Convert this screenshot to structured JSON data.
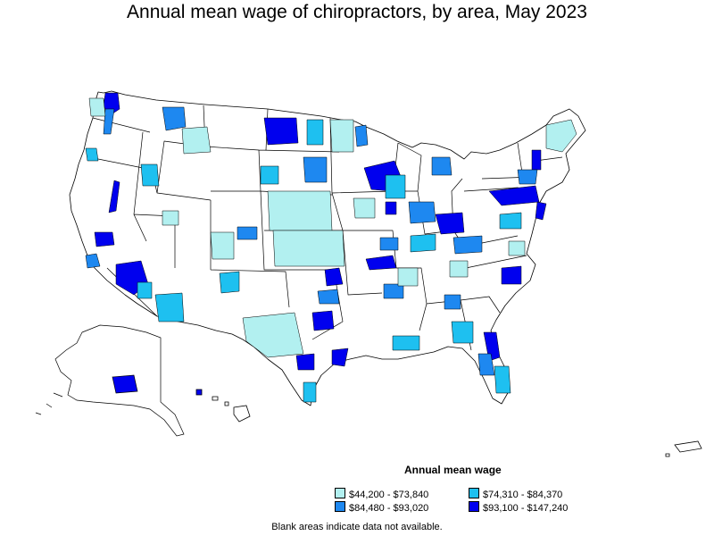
{
  "title": "Annual mean wage of chiropractors, by area, May 2023",
  "legend": {
    "title": "Annual mean wage",
    "items": [
      {
        "label": "$44,200 - $73,840",
        "color": "#b2f0f0"
      },
      {
        "label": "$74,310 - $84,370",
        "color": "#1ec0f0"
      },
      {
        "label": "$84,480 - $93,020",
        "color": "#1e88f0"
      },
      {
        "label": "$93,100 - $147,240",
        "color": "#0000ee"
      }
    ]
  },
  "footnote": "Blank areas indicate data not available."
}
